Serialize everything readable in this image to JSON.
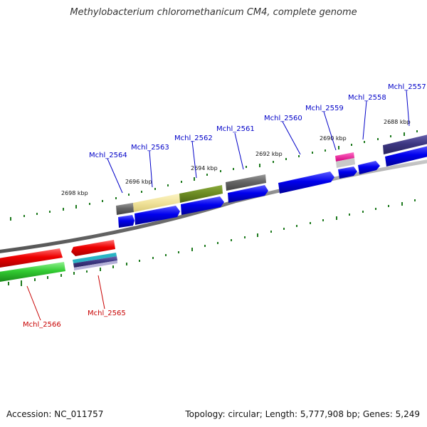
{
  "title": "Methylobacterium chloromethanicum CM4, complete genome",
  "accession": "Accession: NC_011757",
  "stats": "Topology: circular; Length: 5,777,908 bp; Genes: 5,249",
  "colors": {
    "label_top": "#0000c8",
    "label_bottom": "#c80000",
    "backbone": "#888888",
    "ticks": "#1e7a1e"
  },
  "tick_labels": [
    "2698 kbp",
    "2696 kbp",
    "2694 kbp",
    "2692 kbp",
    "2690 kbp",
    "2688 kbp"
  ],
  "gene_labels_top": [
    "Mchl_2564",
    "Mchl_2563",
    "Mchl_2562",
    "Mchl_2561",
    "Mchl_2560",
    "Mchl_2559",
    "Mchl_2558",
    "Mchl_2557"
  ],
  "gene_labels_bottom": [
    "Mchl_2566",
    "Mchl_2565"
  ]
}
